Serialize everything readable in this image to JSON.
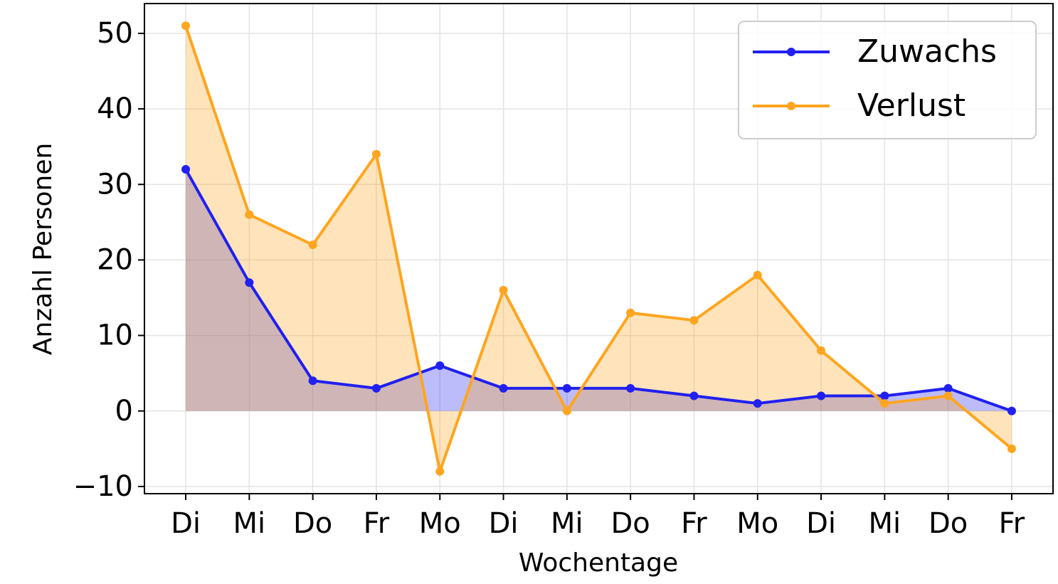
{
  "chart_data": {
    "type": "line",
    "fill_to_zero": true,
    "xlabel": "Wochentage",
    "ylabel": "Anzahl Personen",
    "categories": [
      "Di",
      "Mi",
      "Do",
      "Fr",
      "Mo",
      "Di",
      "Mi",
      "Do",
      "Fr",
      "Mo",
      "Di",
      "Mi",
      "Do",
      "Fr"
    ],
    "series": [
      {
        "name": "Zuwachs",
        "color": "#2020f0",
        "values": [
          32,
          17,
          4,
          3,
          6,
          3,
          3,
          3,
          2,
          1,
          2,
          2,
          3,
          0
        ]
      },
      {
        "name": "Verlust",
        "color": "#ffa51f",
        "values": [
          51,
          26,
          22,
          34,
          -8,
          16,
          0,
          13,
          12,
          18,
          8,
          1,
          2,
          -5
        ]
      }
    ],
    "ylim": [
      -10.95,
      53.95
    ],
    "yticks": [
      {
        "value": -10,
        "label": "−10"
      },
      0,
      10,
      20,
      30,
      40,
      50
    ],
    "grid": true,
    "legend": "upper right"
  }
}
